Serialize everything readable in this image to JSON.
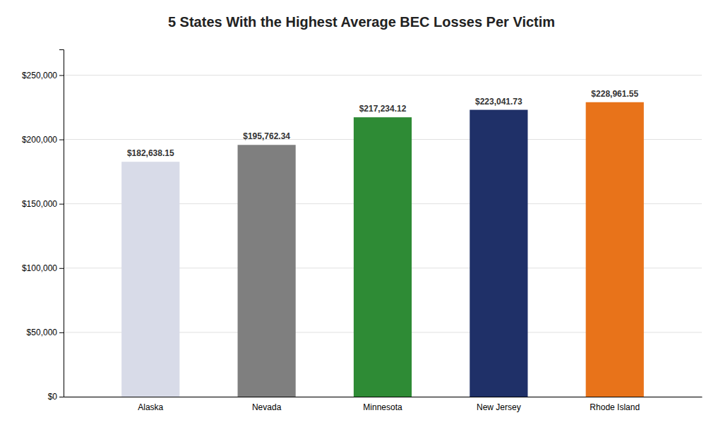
{
  "chart_data": {
    "type": "bar",
    "title": "5 States With the Highest Average BEC Losses Per Victim",
    "categories": [
      "Alaska",
      "Nevada",
      "Minnesota",
      "New Jersey",
      "Rhode Island"
    ],
    "values": [
      182638.15,
      195762.34,
      217234.12,
      223041.73,
      228961.55
    ],
    "value_labels": [
      "$182,638.15",
      "$195,762.34",
      "$217,234.12",
      "$223,041.73",
      "$228,961.55"
    ],
    "colors": [
      "#D8DBE8",
      "#7F7F7F",
      "#2E8B35",
      "#1F3068",
      "#E8731A"
    ],
    "ylim": [
      0,
      270000
    ],
    "yticks": [
      {
        "value": 0,
        "label": "$0"
      },
      {
        "value": 50000,
        "label": "$50,000"
      },
      {
        "value": 100000,
        "label": "$100,000"
      },
      {
        "value": 150000,
        "label": "$150,000"
      },
      {
        "value": 200000,
        "label": "$200,000"
      },
      {
        "value": 250000,
        "label": "$250,000"
      }
    ],
    "grid": true,
    "data_labels": true
  }
}
